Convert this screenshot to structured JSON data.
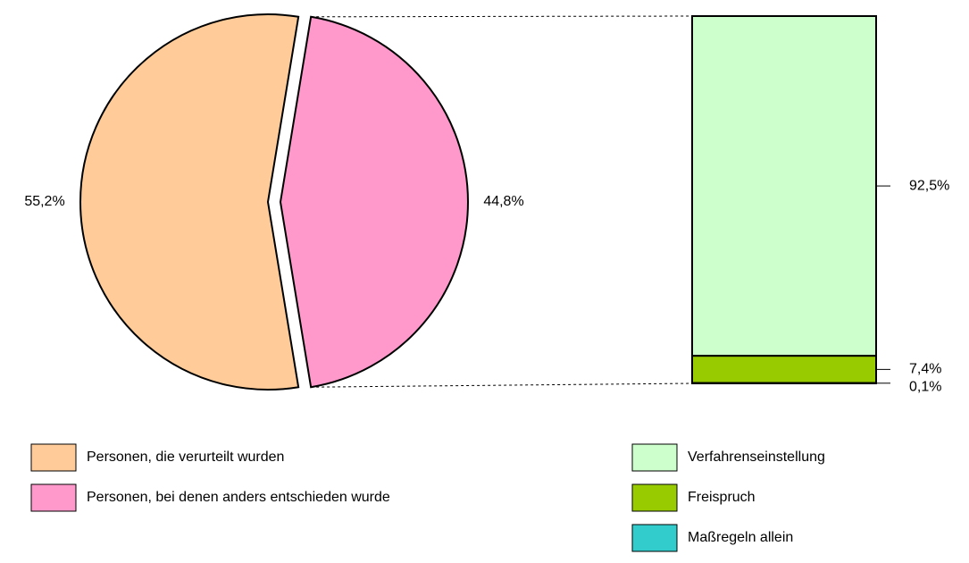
{
  "chart_data": [
    {
      "type": "pie",
      "categories": [
        "Personen, die verurteilt wurden",
        "Personen, bei denen anders entschieden wurde"
      ],
      "values": [
        55.2,
        44.8
      ],
      "value_labels": [
        "55,2%",
        "44,8%"
      ],
      "colors": [
        "#ffcc99",
        "#ff99cc"
      ]
    },
    {
      "type": "stacked_bar",
      "series": [
        {
          "name": "Verfahrenseinstellung",
          "color": "#ccffcc",
          "values": [
            92.5
          ],
          "value_labels": [
            "92,5%"
          ]
        },
        {
          "name": "Freispruch",
          "color": "#99cc00",
          "values": [
            7.4
          ],
          "value_labels": [
            "7,4%"
          ]
        },
        {
          "name": "Maßregeln allein",
          "color": "#33cccc",
          "values": [
            0.1
          ],
          "value_labels": [
            "0,1%"
          ]
        }
      ]
    }
  ]
}
